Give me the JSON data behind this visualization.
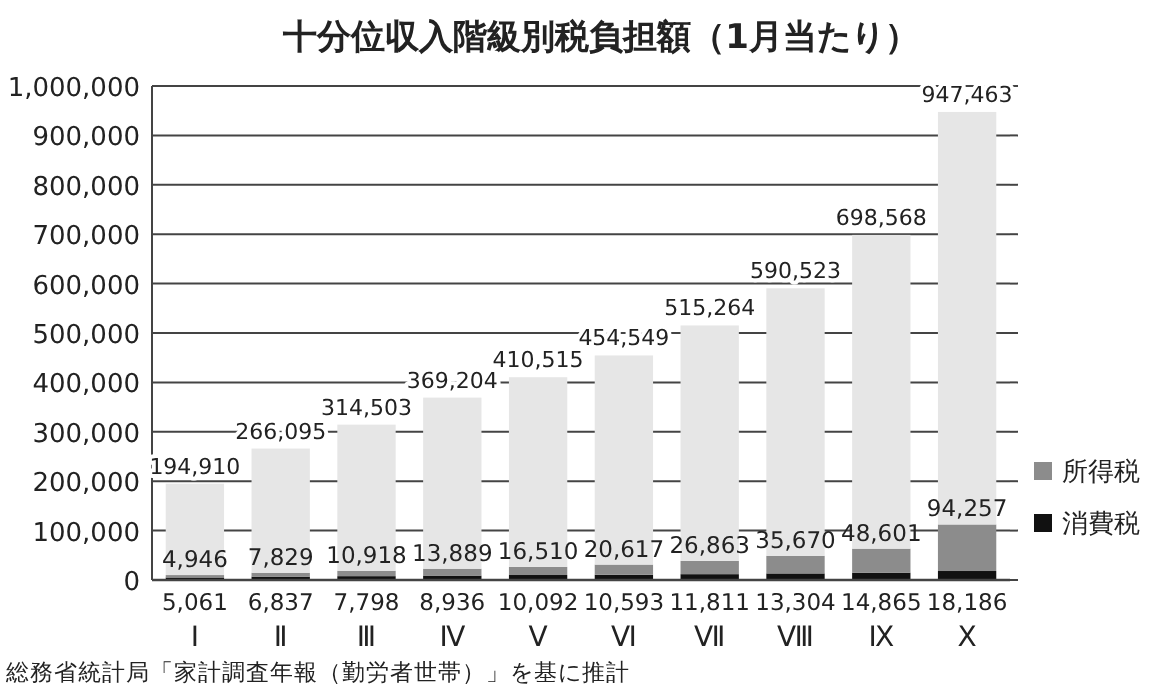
{
  "chart_data": {
    "type": "bar",
    "title": "十分位収入階級別税負担額（1月当たり）",
    "categories": [
      "Ⅰ",
      "Ⅱ",
      "Ⅲ",
      "Ⅳ",
      "Ⅴ",
      "Ⅵ",
      "Ⅶ",
      "Ⅷ",
      "Ⅸ",
      "Ⅹ"
    ],
    "stacked": true,
    "series": [
      {
        "name": "消費税",
        "color": "#111111",
        "values": [
          5061,
          6837,
          7798,
          8936,
          10092,
          10593,
          11811,
          13304,
          14865,
          18186
        ],
        "value_labels": [
          "5,061",
          "6,837",
          "7,798",
          "8,936",
          "10,092",
          "10,593",
          "11,811",
          "13,304",
          "14,865",
          "18,186"
        ]
      },
      {
        "name": "所得税",
        "color": "#8c8c8c",
        "values": [
          4946,
          7829,
          10918,
          13889,
          16510,
          20617,
          26863,
          35670,
          48601,
          94257
        ],
        "value_labels": [
          "4,946",
          "7,829",
          "10,918",
          "13,889",
          "16,510",
          "20,617",
          "26,863",
          "35,670",
          "48,601",
          "94,257"
        ]
      },
      {
        "color": "#e6e6e6",
        "values": [
          184903,
          251429,
          295787,
          346379,
          383913,
          423339,
          476590,
          541549,
          635102,
          835020
        ]
      }
    ],
    "totals": [
      "194,910",
      "266,095",
      "314,503",
      "369,204",
      "410,515",
      "454,549",
      "515,264",
      "590,523",
      "698,568",
      "947,463"
    ],
    "ylim": [
      0,
      1000000
    ],
    "yticks": [
      0,
      {
        "value": 100000,
        "label": "100,000"
      },
      {
        "value": 200000,
        "label": "200,000"
      },
      {
        "value": 300000,
        "label": "300,000"
      },
      {
        "value": 400000,
        "label": "400,000"
      },
      {
        "value": 500000,
        "label": "500,000"
      },
      {
        "value": 600000,
        "label": "600,000"
      },
      {
        "value": 700000,
        "label": "700,000"
      },
      {
        "value": 800000,
        "label": "800,000"
      },
      {
        "value": 900000,
        "label": "900,000"
      },
      {
        "value": 1000000,
        "label": "1,000,000"
      }
    ],
    "grid": "y",
    "legend": "right",
    "annotations": [
      "総務省統計局「家計調査年報（勤労者世帯）」を基に推計"
    ]
  }
}
